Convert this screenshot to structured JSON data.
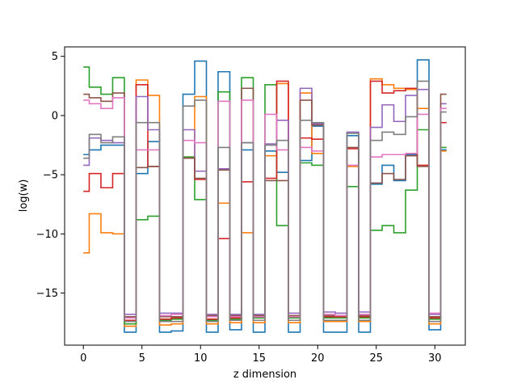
{
  "chart_data": {
    "type": "line",
    "drawstyle": "steps-mid",
    "xlabel": "z dimension",
    "ylabel": "log(w)",
    "xlim": [
      -1.6,
      32.6
    ],
    "ylim": [
      -19.4,
      5.8
    ],
    "xticks": [
      0,
      5,
      10,
      15,
      20,
      25,
      30
    ],
    "yticks": [
      5,
      0,
      -5,
      -10,
      -15
    ],
    "ytick_labels": [
      "5",
      "0",
      "−5",
      "−10",
      "−15"
    ],
    "grid": false,
    "x": [
      0,
      1,
      2,
      3,
      4,
      5,
      6,
      7,
      8,
      9,
      10,
      11,
      12,
      13,
      14,
      15,
      16,
      17,
      18,
      19,
      20,
      21,
      22,
      23,
      24,
      25,
      26,
      27,
      28,
      29,
      30,
      31
    ],
    "series": [
      {
        "color": "#1f77b4",
        "values": [
          -3.3,
          -2.9,
          -2.5,
          -2.5,
          -18.3,
          -4.9,
          -2.2,
          -18.3,
          -18.2,
          1.8,
          4.6,
          -18.3,
          3.7,
          -18.1,
          -2.9,
          -18.3,
          -3.0,
          -4.8,
          -18.3,
          -3.8,
          -0.9,
          -18.3,
          -18.3,
          -1.7,
          -18.3,
          -5.8,
          -4.2,
          -5.5,
          -3.3,
          4.7,
          -18.1,
          -2.9
        ]
      },
      {
        "color": "#ff7f0e",
        "values": [
          -11.6,
          -8.3,
          -9.9,
          -10.0,
          -17.8,
          3.0,
          1.7,
          -17.7,
          -17.6,
          -3.5,
          1.6,
          -17.6,
          -7.4,
          -17.5,
          -9.9,
          -17.5,
          -3.4,
          2.7,
          -17.5,
          1.9,
          -3.2,
          -17.4,
          -17.4,
          -4.3,
          -17.4,
          3.1,
          2.6,
          2.3,
          2.2,
          0.6,
          -17.6,
          -3.0
        ]
      },
      {
        "color": "#2ca02c",
        "values": [
          4.1,
          2.4,
          1.8,
          3.2,
          -17.6,
          -8.8,
          -8.5,
          -17.3,
          -17.2,
          -3.5,
          -7.1,
          -17.3,
          2.0,
          -17.2,
          3.2,
          -17.1,
          2.6,
          -9.3,
          -17.1,
          -4.0,
          -4.2,
          -17.1,
          -17.1,
          -6.0,
          -17.1,
          -9.7,
          -9.3,
          -9.9,
          -6.3,
          -1.2,
          -17.2,
          -2.7
        ]
      },
      {
        "color": "#d62728",
        "values": [
          -6.4,
          -4.9,
          -6.1,
          -4.9,
          -17.3,
          2.6,
          -4.3,
          -17.2,
          -17.1,
          -3.6,
          -5.4,
          -17.2,
          -10.4,
          -17.1,
          -5.6,
          -17.0,
          -5.3,
          2.9,
          -17.0,
          -1.9,
          -2.0,
          -17.0,
          -17.0,
          -2.8,
          -17.0,
          2.9,
          1.9,
          2.1,
          2.3,
          -4.2,
          -17.1,
          -0.6
        ]
      },
      {
        "color": "#9467bd",
        "values": [
          -4.2,
          -1.9,
          -2.1,
          -2.3,
          -16.8,
          1.6,
          -1.2,
          -16.7,
          -16.7,
          -1.2,
          -4.7,
          -16.8,
          -4.5,
          -16.8,
          -2.3,
          -16.8,
          -2.4,
          -0.4,
          -16.7,
          2.3,
          -0.7,
          -16.6,
          -16.7,
          -1.4,
          -16.6,
          -1.0,
          0.9,
          -0.5,
          1.7,
          2.2,
          -16.8,
          1.0
        ]
      },
      {
        "color": "#8c564b",
        "values": [
          1.8,
          1.5,
          1.2,
          1.9,
          -17.0,
          -4.4,
          -4.3,
          -17.0,
          -17.0,
          -3.6,
          -5.3,
          -16.9,
          -4.6,
          -16.9,
          2.3,
          -16.9,
          -5.5,
          -5.5,
          -16.9,
          1.3,
          -0.8,
          -16.9,
          -16.9,
          -2.7,
          -16.9,
          -5.7,
          -4.9,
          -5.4,
          -3.4,
          -4.3,
          -17.0,
          1.8
        ]
      },
      {
        "color": "#e377c2",
        "values": [
          1.3,
          1.0,
          0.6,
          1.5,
          -17.1,
          -2.9,
          -2.9,
          -16.9,
          -16.8,
          -2.1,
          -2.3,
          -17.0,
          1.2,
          -17.0,
          1.3,
          -17.0,
          0.1,
          -2.9,
          -17.0,
          -2.7,
          -3.0,
          -16.8,
          -16.9,
          -4.2,
          -16.8,
          -3.5,
          -3.3,
          -3.3,
          -3.2,
          0.1,
          -16.7,
          0.6
        ]
      },
      {
        "color": "#7f7f7f",
        "values": [
          -3.6,
          -1.6,
          -2.3,
          -1.8,
          -17.4,
          -0.6,
          -0.6,
          -17.4,
          -17.4,
          0.8,
          1.3,
          -17.4,
          -2.7,
          -17.3,
          -2.3,
          -17.3,
          -2.5,
          -2.1,
          -17.3,
          -0.4,
          -0.6,
          -17.3,
          -17.3,
          -1.5,
          -17.3,
          -2.1,
          -1.4,
          -1.6,
          -0.1,
          2.9,
          -17.4,
          0.3
        ]
      }
    ]
  }
}
